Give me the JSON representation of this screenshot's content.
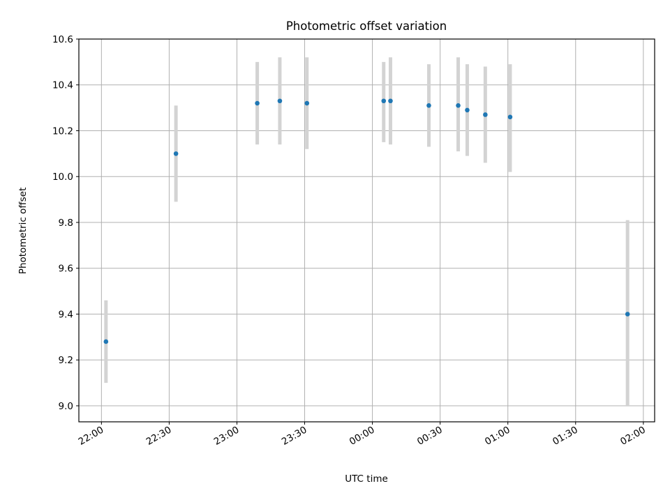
{
  "chart_data": {
    "type": "scatter",
    "title": "Photometric offset variation",
    "xlabel": "UTC time",
    "ylabel": "Photometric offset",
    "xlim": [
      "21:50",
      "02:05"
    ],
    "ylim": [
      8.93,
      10.6
    ],
    "grid": true,
    "x_ticks": [
      "22:00",
      "22:30",
      "23:00",
      "23:30",
      "00:00",
      "00:30",
      "01:00",
      "01:30",
      "02:00"
    ],
    "y_ticks": [
      "9.0",
      "9.2",
      "9.4",
      "9.6",
      "9.8",
      "10.0",
      "10.2",
      "10.4",
      "10.6"
    ],
    "colors": {
      "point": "#1f77b4",
      "error_bar": "#d3d3d3",
      "grid": "#b0b0b0"
    },
    "points": [
      {
        "t": "22:02",
        "y": 9.28,
        "y_err_low": 9.1,
        "y_err_high": 9.46
      },
      {
        "t": "22:33",
        "y": 10.1,
        "y_err_low": 9.89,
        "y_err_high": 10.31
      },
      {
        "t": "23:09",
        "y": 10.32,
        "y_err_low": 10.14,
        "y_err_high": 10.5
      },
      {
        "t": "23:19",
        "y": 10.33,
        "y_err_low": 10.14,
        "y_err_high": 10.52
      },
      {
        "t": "23:31",
        "y": 10.32,
        "y_err_low": 10.12,
        "y_err_high": 10.52
      },
      {
        "t": "00:05",
        "y": 10.33,
        "y_err_low": 10.15,
        "y_err_high": 10.5
      },
      {
        "t": "00:08",
        "y": 10.33,
        "y_err_low": 10.14,
        "y_err_high": 10.52
      },
      {
        "t": "00:25",
        "y": 10.31,
        "y_err_low": 10.13,
        "y_err_high": 10.49
      },
      {
        "t": "00:38",
        "y": 10.31,
        "y_err_low": 10.11,
        "y_err_high": 10.52
      },
      {
        "t": "00:42",
        "y": 10.29,
        "y_err_low": 10.09,
        "y_err_high": 10.49
      },
      {
        "t": "00:50",
        "y": 10.27,
        "y_err_low": 10.06,
        "y_err_high": 10.48
      },
      {
        "t": "01:01",
        "y": 10.26,
        "y_err_low": 10.02,
        "y_err_high": 10.49
      },
      {
        "t": "01:53",
        "y": 9.4,
        "y_err_low": 9.0,
        "y_err_high": 9.81
      }
    ]
  }
}
